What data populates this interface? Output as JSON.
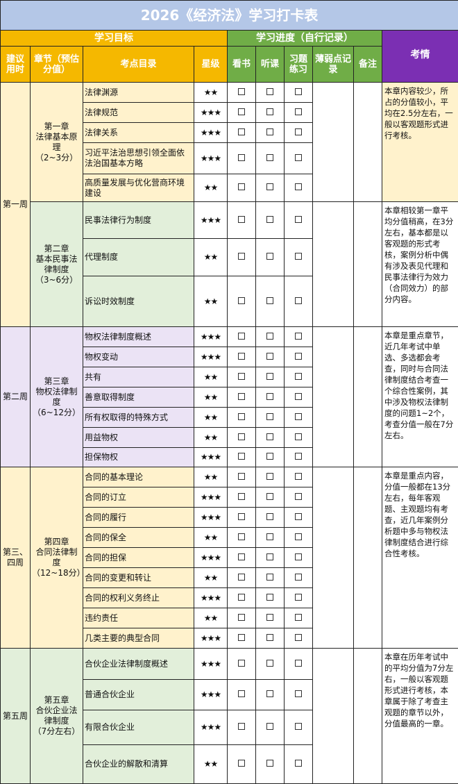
{
  "title": "2026《经济法》学习打卡表",
  "groups": [
    "学习目标",
    "学习进度（自行记录）",
    "考情"
  ],
  "columns": [
    "建议用时",
    "章节（预估分值）",
    "考点目录",
    "星级",
    "看书",
    "听课",
    "习题练习",
    "薄弱点记录",
    "备注"
  ],
  "weeks": [
    {
      "label": "第一周",
      "chapters": [
        {
          "number": "第一章",
          "name": "法律基本原理",
          "score": "（2~3分）",
          "topics": [
            {
              "name": "法律渊源",
              "stars": "★★"
            },
            {
              "name": "法律规范",
              "stars": "★★★"
            },
            {
              "name": "法律关系",
              "stars": "★★★"
            },
            {
              "name": "习近平法治思想引领全面依法治国基本方略",
              "stars": "★★★"
            },
            {
              "name": "高质量发展与优化营商环境建设",
              "stars": "★★"
            }
          ],
          "exam": "本章内容较少，所占的分值较小，平均在2.5分左右，一般以客观题形式进行考核。"
        },
        {
          "number": "第二章",
          "name": "基本民事法律制度",
          "score": "（3~6分）",
          "topics": [
            {
              "name": "民事法律行为制度",
              "stars": "★★★"
            },
            {
              "name": "代理制度",
              "stars": "★★"
            },
            {
              "name": "诉讼时效制度",
              "stars": "★★"
            }
          ],
          "exam": "本章相较第一章平均分值稍高，在3分左右，基本都是以客观题的形式考核，案例分析中偶有涉及表见代理和民事法律行为效力（合同效力）的部分内容。"
        }
      ]
    },
    {
      "label": "第二周",
      "chapters": [
        {
          "number": "第三章",
          "name": "物权法律制度",
          "score": "（6~12分）",
          "topics": [
            {
              "name": "物权法律制度概述",
              "stars": "★★★"
            },
            {
              "name": "物权变动",
              "stars": "★★★"
            },
            {
              "name": "共有",
              "stars": "★★"
            },
            {
              "name": "善意取得制度",
              "stars": "★★"
            },
            {
              "name": "所有权取得的特殊方式",
              "stars": "★★"
            },
            {
              "name": "用益物权",
              "stars": "★★"
            },
            {
              "name": "担保物权",
              "stars": "★★★"
            }
          ],
          "exam": "本章是重点章节，近几年考试中单选、多选都会考查，同时与合同法律制度结合考查一个综合性案例，其中涉及物权法律制度的问题1~2个，考查分值一般在7分左右。"
        }
      ]
    },
    {
      "label": "第三、四周",
      "chapters": [
        {
          "number": "第四章",
          "name": "合同法律制度",
          "score": "（12~18分）",
          "topics": [
            {
              "name": "合同的基本理论",
              "stars": "★★"
            },
            {
              "name": "合同的订立",
              "stars": "★★★"
            },
            {
              "name": "合同的履行",
              "stars": "★★★"
            },
            {
              "name": "合同的保全",
              "stars": "★★"
            },
            {
              "name": "合同的担保",
              "stars": "★★★"
            },
            {
              "name": "合同的变更和转让",
              "stars": "★★"
            },
            {
              "name": "合同的权利义务终止",
              "stars": "★★★"
            },
            {
              "name": "违约责任",
              "stars": "★★"
            },
            {
              "name": "几类主要的典型合同",
              "stars": "★★★"
            }
          ],
          "exam": "本章是重点内容，分值一般都在13分左右，每年客观题、主观题均有考查，近几年案例分析题中多与物权法律制度结合进行综合性考核。"
        }
      ]
    },
    {
      "label": "第五周",
      "chapters": [
        {
          "number": "第五章",
          "name": "合伙企业法律制度",
          "score": "（7分左右）",
          "topics": [
            {
              "name": "合伙企业法律制度概述",
              "stars": "★★★"
            },
            {
              "name": "普通合伙企业",
              "stars": "★★★"
            },
            {
              "name": "有限合伙企业",
              "stars": "★★★"
            },
            {
              "name": "合伙企业的解散和清算",
              "stars": "★★"
            }
          ],
          "exam": "本章在历年考试中的平均分值为7分左右，一般以客观题形式进行考核，本章属于除了考查主观题的章节以外，分值最高的一章。"
        }
      ]
    }
  ]
}
